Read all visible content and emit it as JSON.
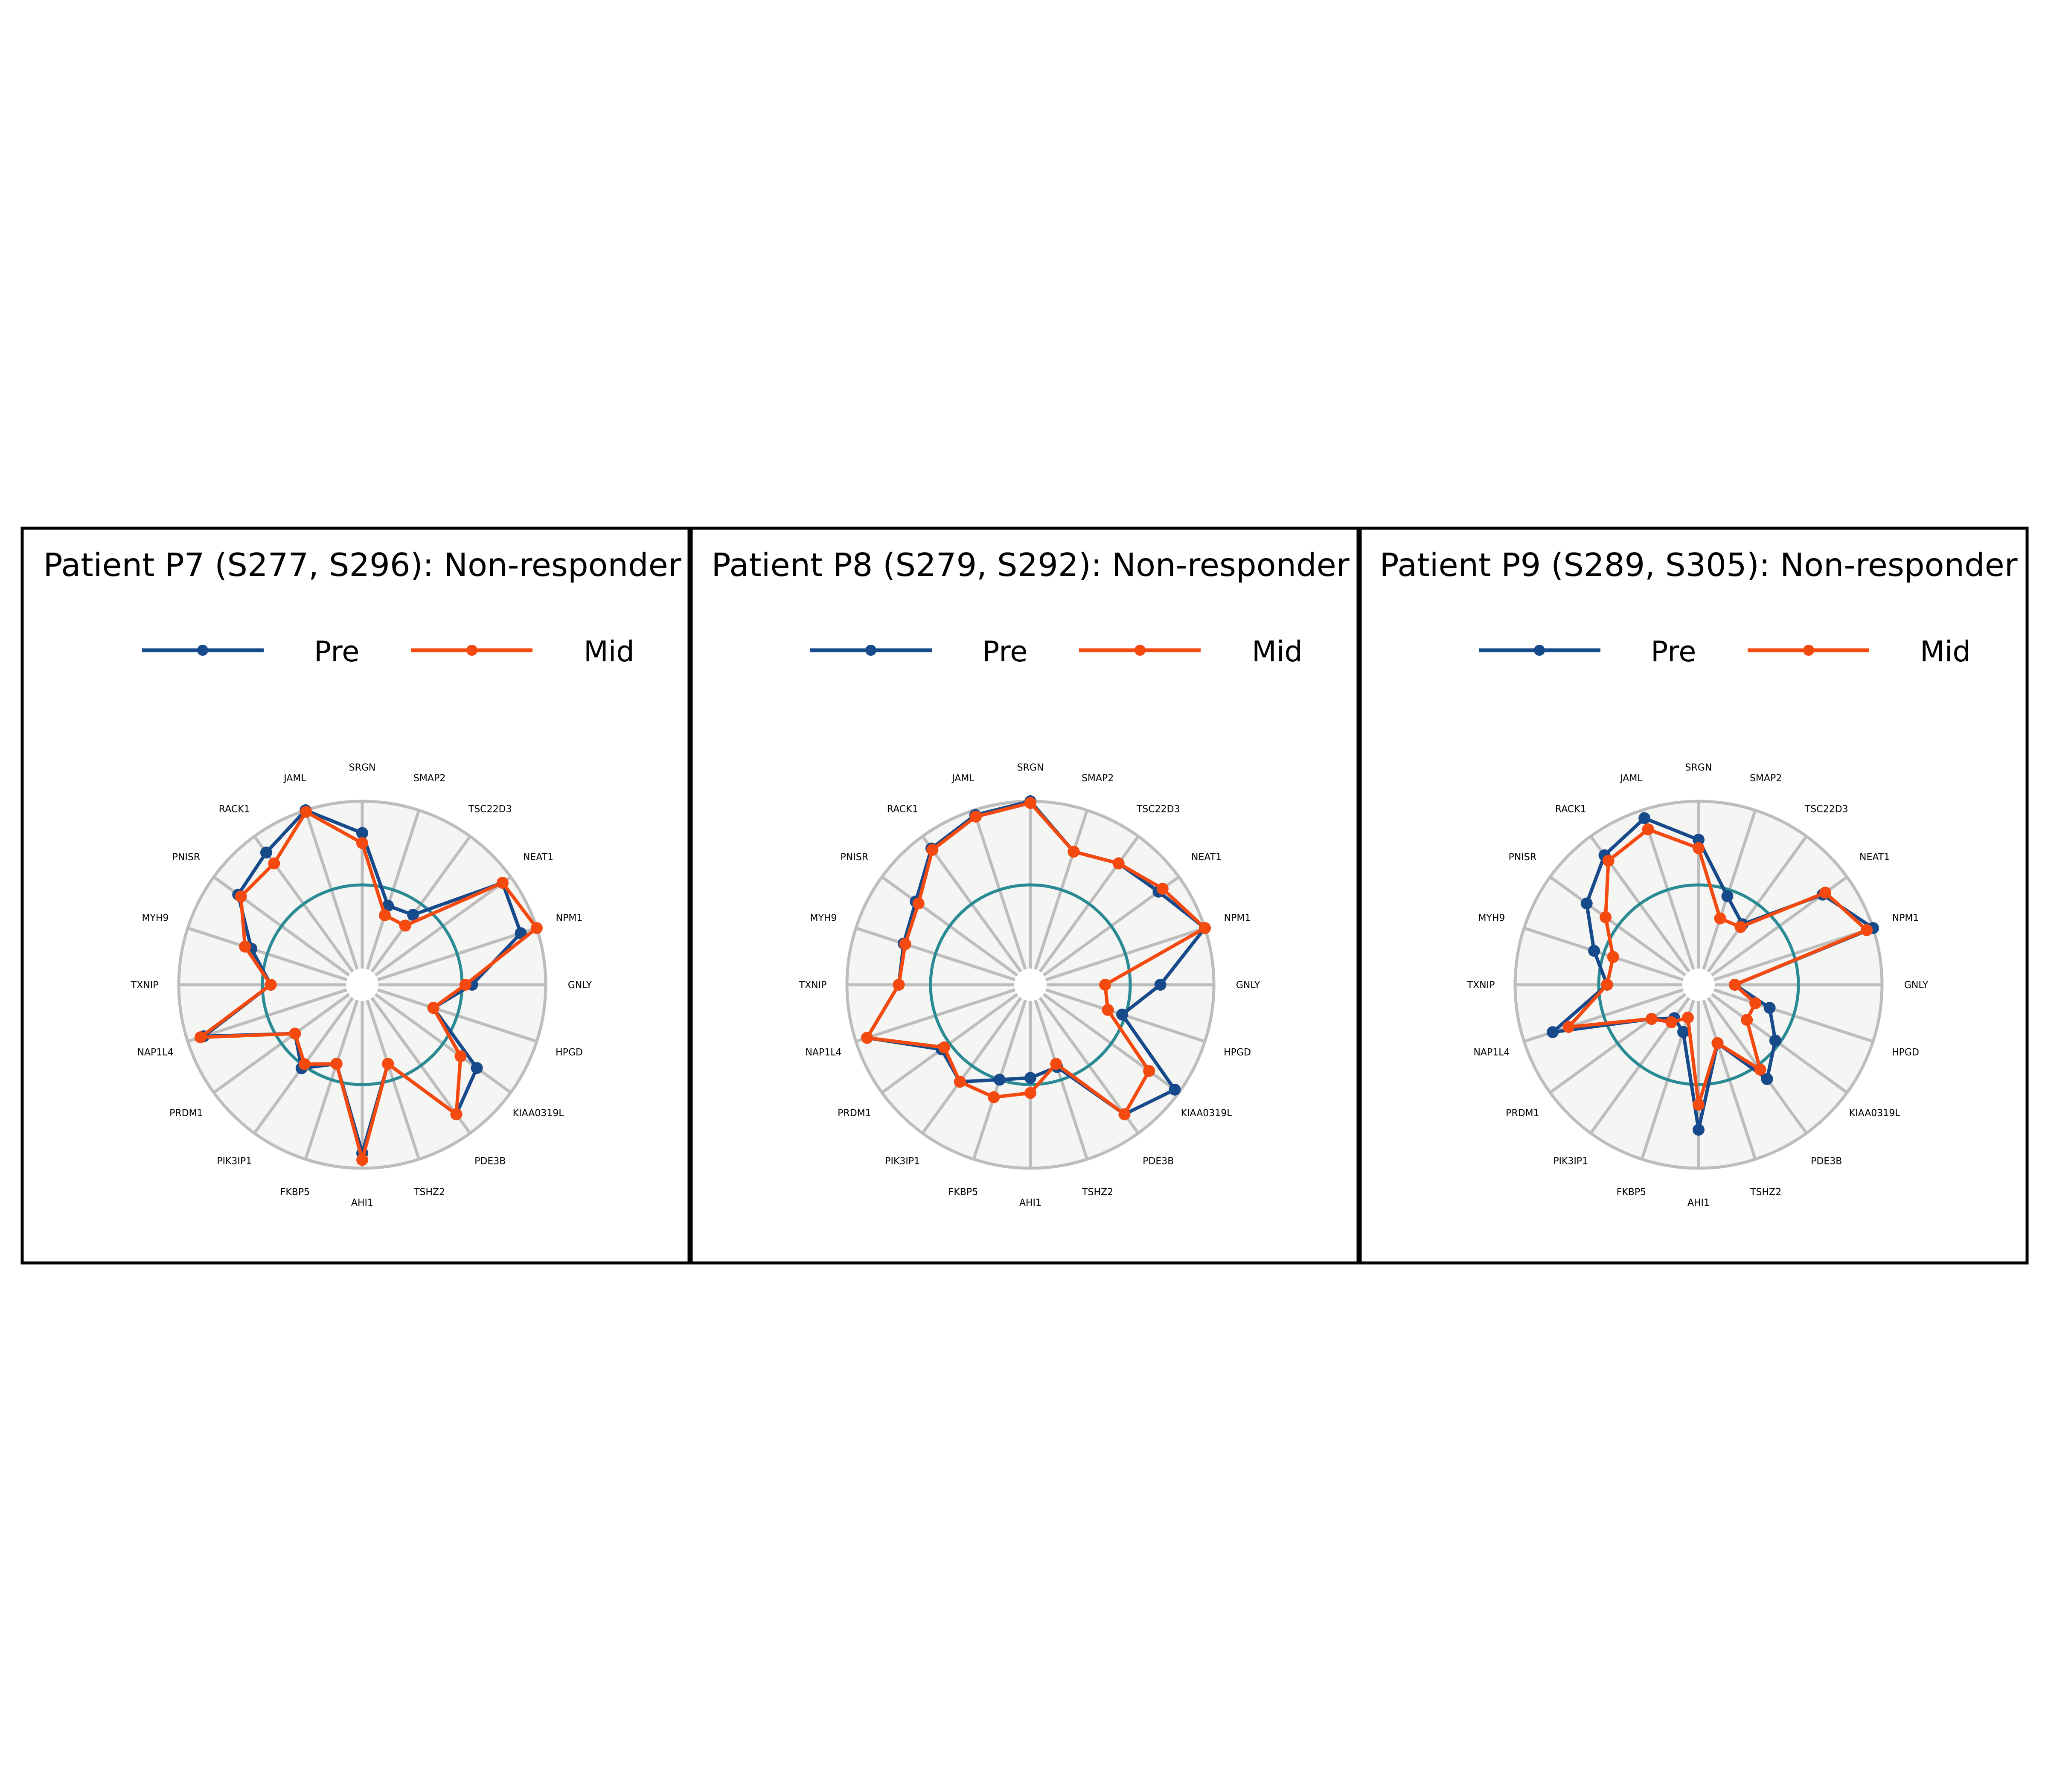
{
  "legend": [
    {
      "name": "Pre",
      "color": "#174a8b"
    },
    {
      "name": "Mid",
      "color": "#f4490f"
    }
  ],
  "colors": {
    "panel_bg": "#f5f5f3",
    "grid": "#bdbdbd",
    "reference_circle": "#2a8a94",
    "frame": "#000000"
  },
  "chart_data": [
    {
      "type": "radar",
      "title": "Patient P7 (S277, S296): Non-responder",
      "categories": [
        "SRGN",
        "SMAP2",
        "TSC22D3",
        "NEAT1",
        "NPM1",
        "GNLY",
        "HPGD",
        "KIAA0319L",
        "PDE3B",
        "TSHZ2",
        "AHI1",
        "FKBP5",
        "PIK3IP1",
        "PRDM1",
        "NAP1L4",
        "TXNIP",
        "MYH9",
        "PNISR",
        "RACK1",
        "JAML"
      ],
      "rlim": [
        0,
        1
      ],
      "reference_level": 0.5,
      "series": [
        {
          "name": "Pre",
          "values": [
            0.81,
            0.4,
            0.42,
            0.94,
            0.9,
            0.56,
            0.35,
            0.75,
            0.86,
            0.4,
            0.91,
            0.4,
            0.52,
            0.4,
            0.9,
            0.45,
            0.6,
            0.82,
            0.88,
            1.0
          ]
        },
        {
          "name": "Mid",
          "values": [
            0.75,
            0.34,
            0.34,
            0.94,
            1.0,
            0.52,
            0.35,
            0.63,
            0.86,
            0.4,
            0.95,
            0.4,
            0.49,
            0.4,
            0.92,
            0.45,
            0.64,
            0.8,
            0.8,
            0.99
          ]
        }
      ]
    },
    {
      "type": "radar",
      "title": "Patient P8 (S279, S292): Non-responder",
      "categories": [
        "SRGN",
        "SMAP2",
        "TSC22D3",
        "NEAT1",
        "NPM1",
        "GNLY",
        "HPGD",
        "KIAA0319L",
        "PDE3B",
        "TSHZ2",
        "AHI1",
        "FKBP5",
        "PIK3IP1",
        "PRDM1",
        "NAP1L4",
        "TXNIP",
        "MYH9",
        "PNISR",
        "RACK1",
        "JAML"
      ],
      "rlim": [
        0,
        1
      ],
      "reference_level": 0.5,
      "series": [
        {
          "name": "Pre",
          "values": [
            1.0,
            0.74,
            0.8,
            0.85,
            1.0,
            0.68,
            0.48,
            0.97,
            0.86,
            0.42,
            0.46,
            0.5,
            0.62,
            0.56,
            0.93,
            0.69,
            0.7,
            0.75,
            0.91,
            0.97
          ]
        },
        {
          "name": "Mid",
          "values": [
            0.99,
            0.74,
            0.8,
            0.88,
            1.0,
            0.35,
            0.39,
            0.78,
            0.86,
            0.4,
            0.55,
            0.61,
            0.62,
            0.54,
            0.93,
            0.69,
            0.69,
            0.73,
            0.9,
            0.96
          ]
        }
      ]
    },
    {
      "type": "radar",
      "title": "Patient P9 (S289, S305): Non-responder",
      "categories": [
        "SRGN",
        "SMAP2",
        "TSC22D3",
        "NEAT1",
        "NPM1",
        "GNLY",
        "HPGD",
        "KIAA0319L",
        "PDE3B",
        "TSHZ2",
        "AHI1",
        "FKBP5",
        "PIK3IP1",
        "PRDM1",
        "NAP1L4",
        "TXNIP",
        "MYH9",
        "PNISR",
        "RACK1",
        "JAML"
      ],
      "rlim": [
        0,
        1
      ],
      "reference_level": 0.5,
      "series": [
        {
          "name": "Pre",
          "values": [
            0.77,
            0.46,
            0.35,
            0.82,
            1.0,
            0.12,
            0.35,
            0.47,
            0.6,
            0.27,
            0.77,
            0.2,
            0.15,
            0.25,
            0.82,
            0.45,
            0.56,
            0.73,
            0.86,
            0.95
          ]
        },
        {
          "name": "Mid",
          "values": [
            0.72,
            0.32,
            0.33,
            0.84,
            0.96,
            0.12,
            0.26,
            0.26,
            0.53,
            0.27,
            0.62,
            0.11,
            0.18,
            0.25,
            0.72,
            0.45,
            0.44,
            0.59,
            0.82,
            0.88
          ]
        }
      ]
    }
  ]
}
